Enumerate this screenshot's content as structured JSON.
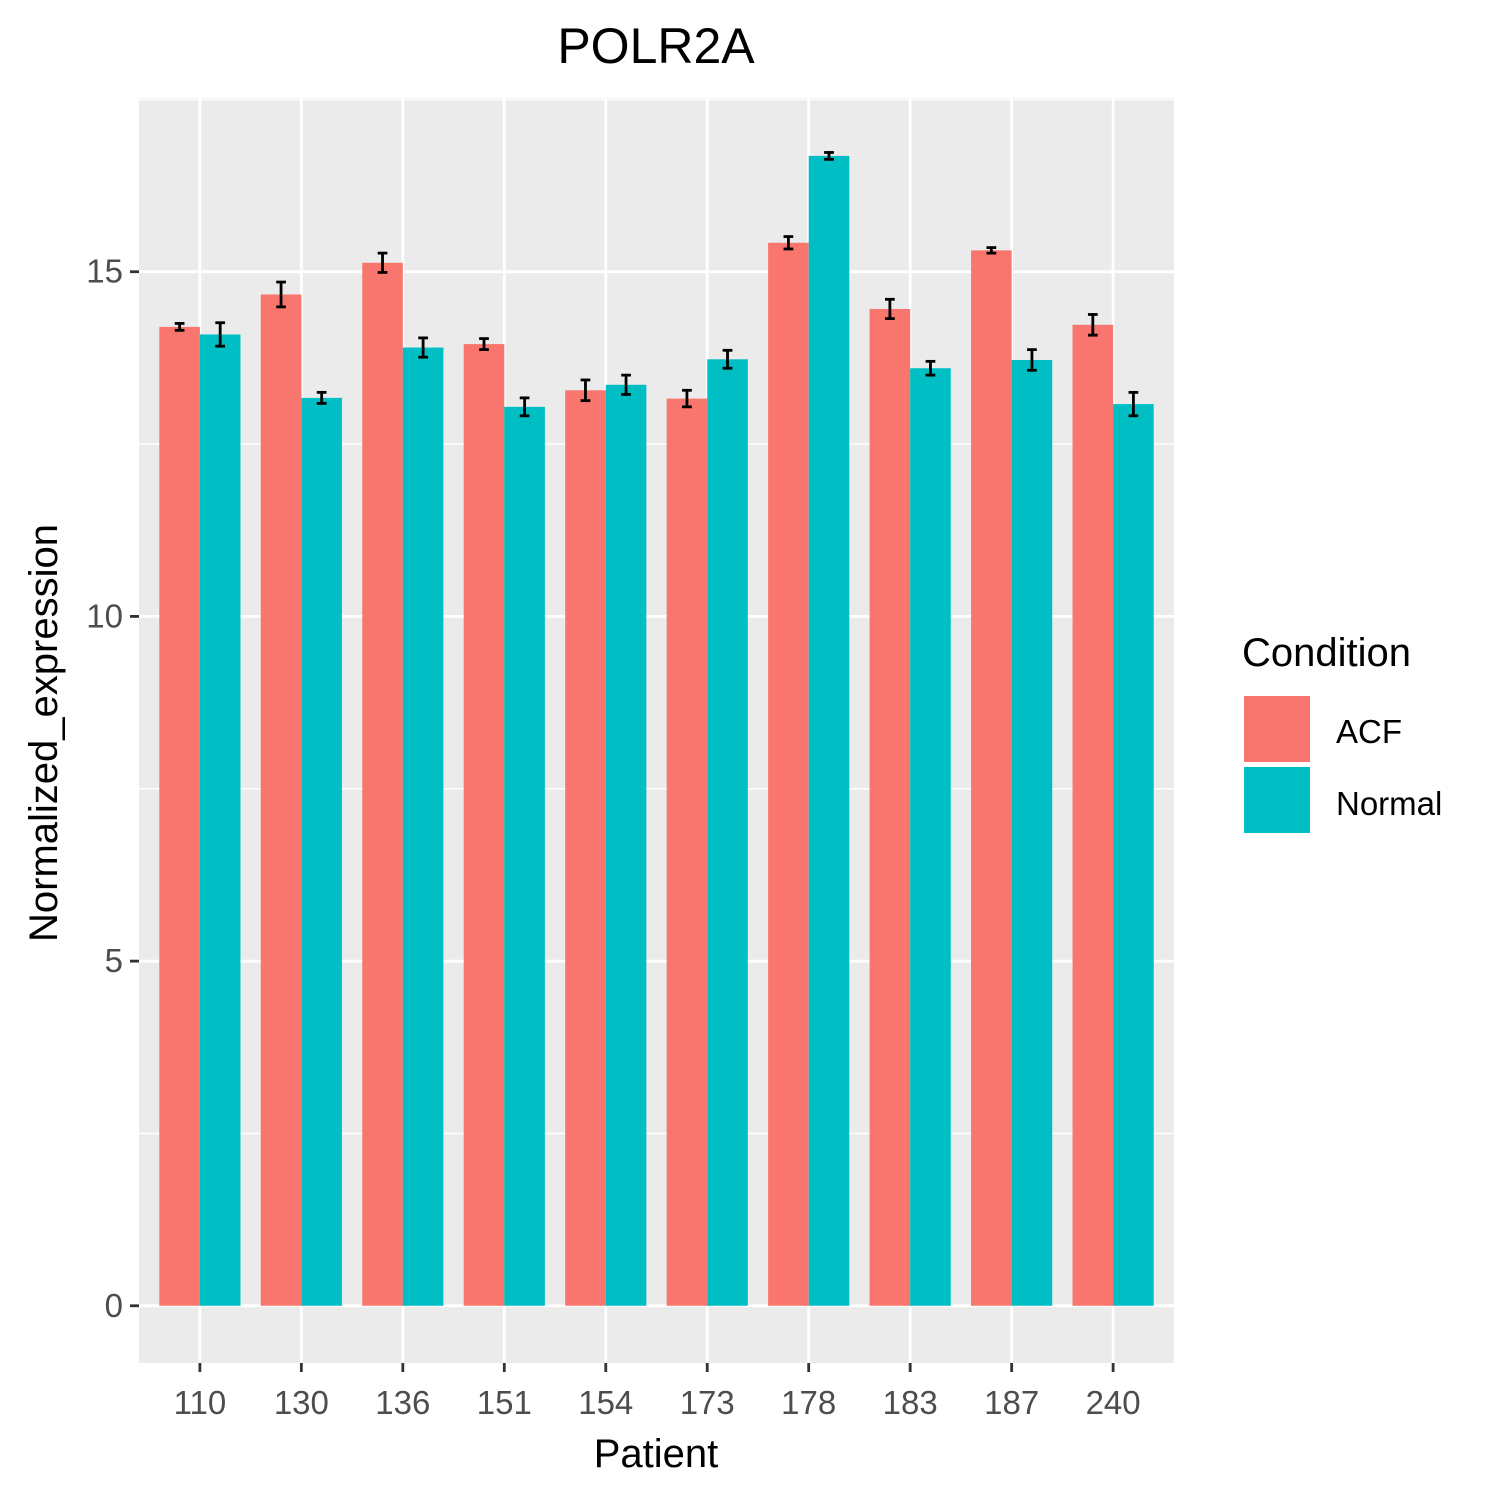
{
  "chart_data": {
    "type": "bar",
    "title": "POLR2A",
    "xlabel": "Patient",
    "ylabel": "Normalized_expression",
    "categories": [
      "110",
      "130",
      "136",
      "151",
      "154",
      "173",
      "178",
      "183",
      "187",
      "240"
    ],
    "series": [
      {
        "name": "ACF",
        "color": "#F8766D",
        "values": [
          14.2,
          14.67,
          15.13,
          13.95,
          13.28,
          13.16,
          15.42,
          14.46,
          15.31,
          14.23
        ],
        "errors": [
          0.05,
          0.18,
          0.14,
          0.08,
          0.15,
          0.12,
          0.09,
          0.14,
          0.04,
          0.15
        ]
      },
      {
        "name": "Normal",
        "color": "#00BFC4",
        "values": [
          14.09,
          13.17,
          13.9,
          13.04,
          13.36,
          13.73,
          16.68,
          13.6,
          13.72,
          13.08
        ],
        "errors": [
          0.17,
          0.08,
          0.14,
          0.13,
          0.14,
          0.13,
          0.05,
          0.1,
          0.15,
          0.17
        ]
      }
    ],
    "yticks": [
      0,
      5,
      10,
      15
    ],
    "ylim": [
      -0.83,
      17.52
    ],
    "grid": true,
    "legend": {
      "title": "Condition",
      "position": "right"
    }
  }
}
